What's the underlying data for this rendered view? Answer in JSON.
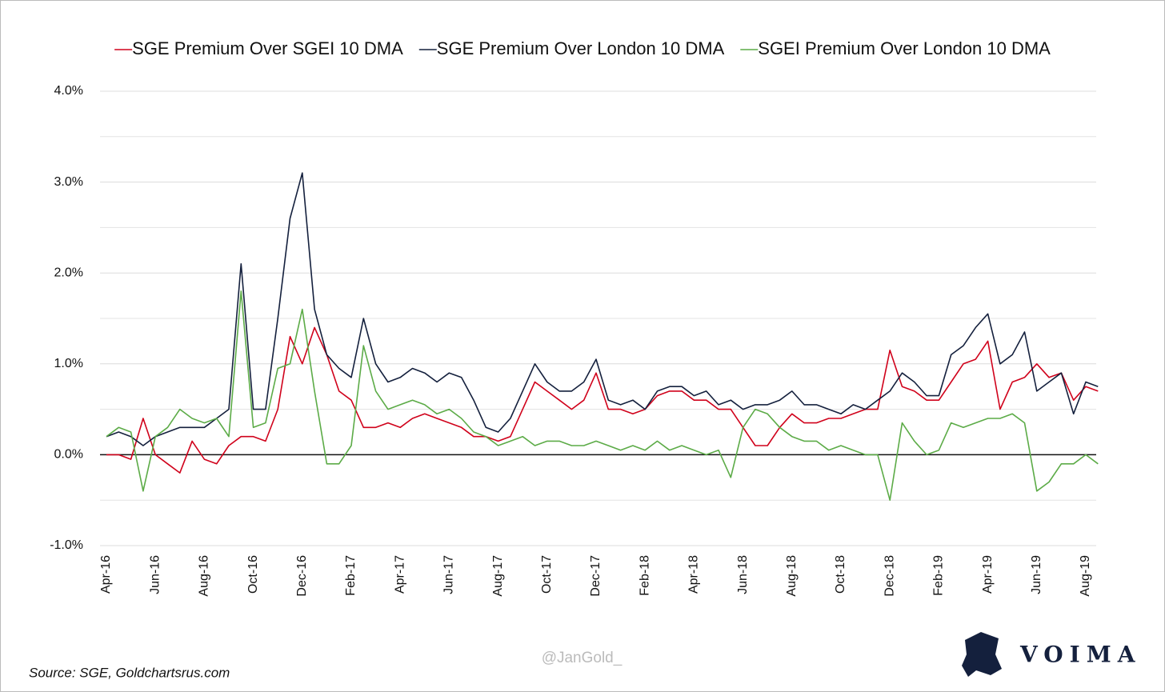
{
  "chart_data": {
    "type": "line",
    "legend": "top",
    "series": [
      {
        "name": "SGE Premium Over SGEI 10 DMA",
        "color": "#d0021b",
        "values": [
          0.0,
          0.0,
          -0.05,
          0.4,
          0.0,
          -0.1,
          -0.2,
          0.15,
          -0.05,
          -0.1,
          0.1,
          0.2,
          0.2,
          0.15,
          0.5,
          1.3,
          1.0,
          1.4,
          1.1,
          0.7,
          0.6,
          0.3,
          0.3,
          0.35,
          0.3,
          0.4,
          0.45,
          0.4,
          0.35,
          0.3,
          0.2,
          0.2,
          0.15,
          0.2,
          0.5,
          0.8,
          0.7,
          0.6,
          0.5,
          0.6,
          0.9,
          0.5,
          0.5,
          0.45,
          0.5,
          0.65,
          0.7,
          0.7,
          0.6,
          0.6,
          0.5,
          0.5,
          0.3,
          0.1,
          0.1,
          0.3,
          0.45,
          0.35,
          0.35,
          0.4,
          0.4,
          0.45,
          0.5,
          0.5,
          1.15,
          0.75,
          0.7,
          0.6,
          0.6,
          0.8,
          1.0,
          1.05,
          1.25,
          0.5,
          0.8,
          0.85,
          1.0,
          0.85,
          0.9,
          0.6,
          0.75,
          0.7
        ]
      },
      {
        "name": "SGE Premium Over London 10 DMA",
        "color": "#14203d",
        "values": [
          0.2,
          0.25,
          0.2,
          0.1,
          0.2,
          0.25,
          0.3,
          0.3,
          0.3,
          0.4,
          0.5,
          2.1,
          0.5,
          0.5,
          1.5,
          2.6,
          3.1,
          1.6,
          1.1,
          0.95,
          0.85,
          1.5,
          1.0,
          0.8,
          0.85,
          0.95,
          0.9,
          0.8,
          0.9,
          0.85,
          0.6,
          0.3,
          0.25,
          0.4,
          0.7,
          1.0,
          0.8,
          0.7,
          0.7,
          0.8,
          1.05,
          0.6,
          0.55,
          0.6,
          0.5,
          0.7,
          0.75,
          0.75,
          0.65,
          0.7,
          0.55,
          0.6,
          0.5,
          0.55,
          0.55,
          0.6,
          0.7,
          0.55,
          0.55,
          0.5,
          0.45,
          0.55,
          0.5,
          0.6,
          0.7,
          0.9,
          0.8,
          0.65,
          0.65,
          1.1,
          1.2,
          1.4,
          1.55,
          1.0,
          1.1,
          1.35,
          0.7,
          0.8,
          0.9,
          0.45,
          0.8,
          0.75
        ]
      },
      {
        "name": "SGEI Premium Over London 10 DMA",
        "color": "#5cab47",
        "values": [
          0.2,
          0.3,
          0.25,
          -0.4,
          0.2,
          0.3,
          0.5,
          0.4,
          0.35,
          0.4,
          0.2,
          1.8,
          0.3,
          0.35,
          0.95,
          1.0,
          1.6,
          0.7,
          -0.1,
          -0.1,
          0.1,
          1.2,
          0.7,
          0.5,
          0.55,
          0.6,
          0.55,
          0.45,
          0.5,
          0.4,
          0.25,
          0.2,
          0.1,
          0.15,
          0.2,
          0.1,
          0.15,
          0.15,
          0.1,
          0.1,
          0.15,
          0.1,
          0.05,
          0.1,
          0.05,
          0.15,
          0.05,
          0.1,
          0.05,
          0.0,
          0.05,
          -0.25,
          0.3,
          0.5,
          0.45,
          0.3,
          0.2,
          0.15,
          0.15,
          0.05,
          0.1,
          0.05,
          0.0,
          0.0,
          -0.5,
          0.35,
          0.15,
          0.0,
          0.05,
          0.35,
          0.3,
          0.35,
          0.4,
          0.4,
          0.45,
          0.35,
          -0.4,
          -0.3,
          -0.1,
          -0.1,
          0.0,
          -0.1
        ]
      }
    ],
    "categories": [
      "Apr-16",
      null,
      null,
      null,
      "Jun-16",
      null,
      null,
      null,
      "Aug-16",
      null,
      null,
      null,
      "Oct-16",
      null,
      null,
      null,
      "Dec-16",
      null,
      null,
      null,
      "Feb-17",
      null,
      null,
      null,
      "Apr-17",
      null,
      null,
      null,
      "Jun-17",
      null,
      null,
      null,
      "Aug-17",
      null,
      null,
      null,
      "Oct-17",
      null,
      null,
      null,
      "Dec-17",
      null,
      null,
      null,
      "Feb-18",
      null,
      null,
      null,
      "Apr-18",
      null,
      null,
      null,
      "Jun-18",
      null,
      null,
      null,
      "Aug-18",
      null,
      null,
      null,
      "Oct-18",
      null,
      null,
      null,
      "Dec-18",
      null,
      null,
      null,
      "Feb-19",
      null,
      null,
      null,
      "Apr-19",
      null,
      null,
      null,
      "Jun-19",
      null,
      null,
      null,
      "Aug-19",
      null
    ],
    "ylim": [
      -1,
      4
    ],
    "yticks": [
      {
        "value": -1,
        "label": "-1.0%"
      },
      {
        "value": 0,
        "label": "0.0%"
      },
      {
        "value": 1,
        "label": "1.0%"
      },
      {
        "value": 2,
        "label": "2.0%"
      },
      {
        "value": 3,
        "label": "3.0%"
      },
      {
        "value": 4,
        "label": "4.0%"
      }
    ],
    "minor_yticks": [
      -0.5,
      0.5,
      1.5,
      2.5,
      3.5
    ],
    "grid": true,
    "source": "Source: SGE, Goldchartsrus.com",
    "watermark": "@JanGold_",
    "brand": "VOIMA"
  }
}
